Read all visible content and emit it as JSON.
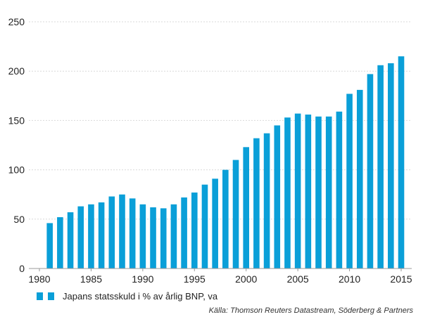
{
  "chart_data": {
    "type": "bar",
    "title": "",
    "xlabel": "",
    "ylabel": "",
    "x": [
      1981,
      1982,
      1983,
      1984,
      1985,
      1986,
      1987,
      1988,
      1989,
      1990,
      1991,
      1992,
      1993,
      1994,
      1995,
      1996,
      1997,
      1998,
      1999,
      2000,
      2001,
      2002,
      2003,
      2004,
      2005,
      2006,
      2007,
      2008,
      2009,
      2010,
      2011,
      2012,
      2013,
      2014,
      2015
    ],
    "values": [
      46,
      52,
      57,
      63,
      65,
      67,
      73,
      75,
      71,
      65,
      62,
      61,
      65,
      72,
      77,
      85,
      91,
      100,
      110,
      123,
      132,
      137,
      145,
      153,
      157,
      156,
      154,
      154,
      159,
      177,
      181,
      197,
      206,
      208,
      215
    ],
    "ylim": [
      0,
      250
    ],
    "yticks": [
      0,
      50,
      100,
      150,
      200,
      250
    ],
    "xlim": [
      1980,
      2015
    ],
    "xticks": [
      1980,
      1985,
      1990,
      1995,
      2000,
      2005,
      2010,
      2015
    ],
    "gridlines": true,
    "legend_position": "bottom-left",
    "bar_color": "#0a9fd8",
    "series": [
      {
        "name": "Japans statsskuld i % av årlig BNP, va"
      }
    ]
  },
  "legend": {
    "label": "Japans statsskuld i % av årlig BNP, va"
  },
  "source": "Källa: Thomson Reuters Datastream, Söderberg & Partners"
}
